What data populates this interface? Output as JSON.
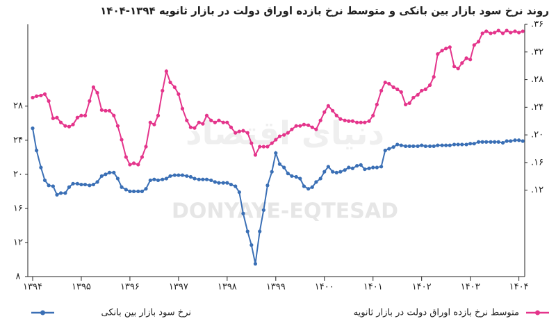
{
  "chart_data": {
    "type": "line",
    "title": "روند نرخ سود بازار بین بانکی و متوسط نرخ بازده اوراق دولت در بازار ثانویه ۱۳۹۴-۱۴۰۴",
    "watermark": "DONYAYE-EQTESAD",
    "watermark_logo": "دنیای اقتصاد",
    "x": [
      1394,
      1394.08,
      1394.17,
      1394.25,
      1394.33,
      1394.42,
      1394.5,
      1394.58,
      1394.67,
      1394.75,
      1394.83,
      1394.92,
      1395,
      1395.08,
      1395.17,
      1395.25,
      1395.33,
      1395.42,
      1395.5,
      1395.58,
      1395.67,
      1395.75,
      1395.83,
      1395.92,
      1396,
      1396.08,
      1396.17,
      1396.25,
      1396.33,
      1396.42,
      1396.5,
      1396.58,
      1396.67,
      1396.75,
      1396.83,
      1396.92,
      1397,
      1397.08,
      1397.17,
      1397.25,
      1397.33,
      1397.42,
      1397.5,
      1397.58,
      1397.67,
      1397.75,
      1397.83,
      1397.92,
      1398,
      1398.08,
      1398.17,
      1398.25,
      1398.33,
      1398.42,
      1398.5,
      1398.58,
      1398.67,
      1398.75,
      1398.83,
      1398.92,
      1399,
      1399.08,
      1399.17,
      1399.25,
      1399.33,
      1399.42,
      1399.5,
      1399.58,
      1399.67,
      1399.75,
      1399.83,
      1399.92,
      1400,
      1400.08,
      1400.17,
      1400.25,
      1400.33,
      1400.42,
      1400.5,
      1400.58,
      1400.67,
      1400.75,
      1400.83,
      1400.92,
      1401,
      1401.08,
      1401.17,
      1401.25,
      1401.33,
      1401.42,
      1401.5,
      1401.58,
      1401.67,
      1401.75,
      1401.83,
      1401.92,
      1402,
      1402.08,
      1402.17,
      1402.25,
      1402.33,
      1402.42,
      1402.5,
      1402.58,
      1402.67,
      1402.75,
      1402.83,
      1402.92,
      1403,
      1403.08,
      1403.17,
      1403.25,
      1403.33,
      1403.42,
      1403.5,
      1403.58,
      1403.67,
      1403.75,
      1403.83,
      1403.92,
      1404,
      1404.08
    ],
    "series": [
      {
        "name": "نرخ سود بازار بین بانکی",
        "color": "#3a6fb5",
        "values": [
          25.4,
          22.8,
          20.8,
          19.3,
          18.7,
          18.6,
          17.6,
          17.8,
          17.8,
          18.5,
          18.9,
          18.9,
          18.8,
          18.8,
          18.7,
          18.8,
          19.1,
          19.8,
          20.0,
          20.2,
          20.2,
          19.5,
          18.5,
          18.2,
          18.0,
          18.0,
          18.0,
          18.0,
          18.3,
          19.3,
          19.4,
          19.3,
          19.4,
          19.5,
          19.8,
          19.9,
          19.9,
          19.9,
          19.8,
          19.7,
          19.5,
          19.4,
          19.4,
          19.4,
          19.3,
          19.1,
          19.0,
          19.0,
          19.0,
          18.8,
          18.6,
          17.9,
          15.4,
          13.3,
          11.7,
          9.5,
          13.3,
          15.8,
          18.7,
          20.3,
          22.5,
          21.2,
          20.8,
          20.1,
          19.8,
          19.7,
          19.5,
          18.6,
          18.3,
          18.5,
          19.1,
          19.5,
          20.3,
          20.9,
          20.3,
          20.2,
          20.3,
          20.5,
          20.8,
          20.7,
          21.0,
          21.1,
          20.6,
          20.7,
          20.8,
          20.8,
          20.9,
          22.8,
          23.0,
          23.2,
          23.5,
          23.4,
          23.3,
          23.3,
          23.3,
          23.3,
          23.4,
          23.3,
          23.3,
          23.3,
          23.4,
          23.4,
          23.4,
          23.4,
          23.5,
          23.5,
          23.5,
          23.5,
          23.6,
          23.6,
          23.8,
          23.8,
          23.8,
          23.8,
          23.8,
          23.8,
          23.7,
          23.9,
          23.9,
          24.0,
          24.0,
          23.9
        ]
      },
      {
        "name": "متوسط نرخ بازده اوراق دولت در بازار ثانویه",
        "color": "#e4348b",
        "axis": "y2",
        "values": [
          25.4,
          25.6,
          25.7,
          25.9,
          24.9,
          22.4,
          22.5,
          21.8,
          21.3,
          21.2,
          21.5,
          22.5,
          22.8,
          22.8,
          24.9,
          26.9,
          26.1,
          23.6,
          23.5,
          23.5,
          22.8,
          21.3,
          19.3,
          16.8,
          15.7,
          15.9,
          15.7,
          16.8,
          18.3,
          21.8,
          21.5,
          22.8,
          26.4,
          29.2,
          27.6,
          26.9,
          25.9,
          23.8,
          22.1,
          21.1,
          21.0,
          21.8,
          21.6,
          22.8,
          22.1,
          21.8,
          22.1,
          21.8,
          21.8,
          21.1,
          20.3,
          20.5,
          20.6,
          20.3,
          18.8,
          17.1,
          18.3,
          18.3,
          18.3,
          18.8,
          19.3,
          19.8,
          20.0,
          20.3,
          20.8,
          21.3,
          21.3,
          21.5,
          21.4,
          21.1,
          20.8,
          22.1,
          23.3,
          24.2,
          23.5,
          22.8,
          22.3,
          22.1,
          22.0,
          22.0,
          21.8,
          21.8,
          21.8,
          22.0,
          22.8,
          24.4,
          26.4,
          27.6,
          27.4,
          26.9,
          26.6,
          26.2,
          24.4,
          24.6,
          25.4,
          25.8,
          26.4,
          26.6,
          27.2,
          28.4,
          31.7,
          32.2,
          32.5,
          32.7,
          29.9,
          29.6,
          30.4,
          31.1,
          30.9,
          33.0,
          33.5,
          34.7,
          35.0,
          34.7,
          34.8,
          35.1,
          34.7,
          35.1,
          34.8,
          35.0,
          34.8,
          35.0
        ]
      }
    ],
    "xlim": [
      1393.9,
      1404.12
    ],
    "xticks": [
      {
        "value": 1394,
        "label": "۱۳۹۴"
      },
      {
        "value": 1395,
        "label": "۱۳۹۵"
      },
      {
        "value": 1396,
        "label": "۱۳۹۶"
      },
      {
        "value": 1397,
        "label": "۱۳۹۷"
      },
      {
        "value": 1398,
        "label": "۱۳۹۸"
      },
      {
        "value": 1399,
        "label": "۱۳۹۹"
      },
      {
        "value": 1400,
        "label": "۱۴۰۰"
      },
      {
        "value": 1401,
        "label": "۱۴۰۱"
      },
      {
        "value": 1402,
        "label": "۱۴۰۲"
      },
      {
        "value": 1403,
        "label": "۱۴۰۳"
      },
      {
        "value": 1404,
        "label": "۱۴۰۴"
      }
    ],
    "ylim": [
      8,
      37.6
    ],
    "yticks": [
      {
        "value": 8,
        "label": "۸"
      },
      {
        "value": 12,
        "label": "۱۲"
      },
      {
        "value": 16,
        "label": "۱۶"
      },
      {
        "value": 20,
        "label": "۲۰"
      },
      {
        "value": 24,
        "label": "۲۴"
      },
      {
        "value": 28,
        "label": "۲۸"
      }
    ],
    "y2lim": [
      -0.5,
      36
    ],
    "y2ticks": [
      {
        "value": 12,
        "label": ".۱۲"
      },
      {
        "value": 16,
        "label": ".۱۶"
      },
      {
        "value": 20,
        "label": ".۲۰"
      },
      {
        "value": 24,
        "label": ".۲۴"
      },
      {
        "value": 28,
        "label": ".۲۸"
      },
      {
        "value": 32,
        "label": ".۳۲"
      },
      {
        "value": 36,
        "label": ".۳۶"
      }
    ],
    "grid": false
  }
}
